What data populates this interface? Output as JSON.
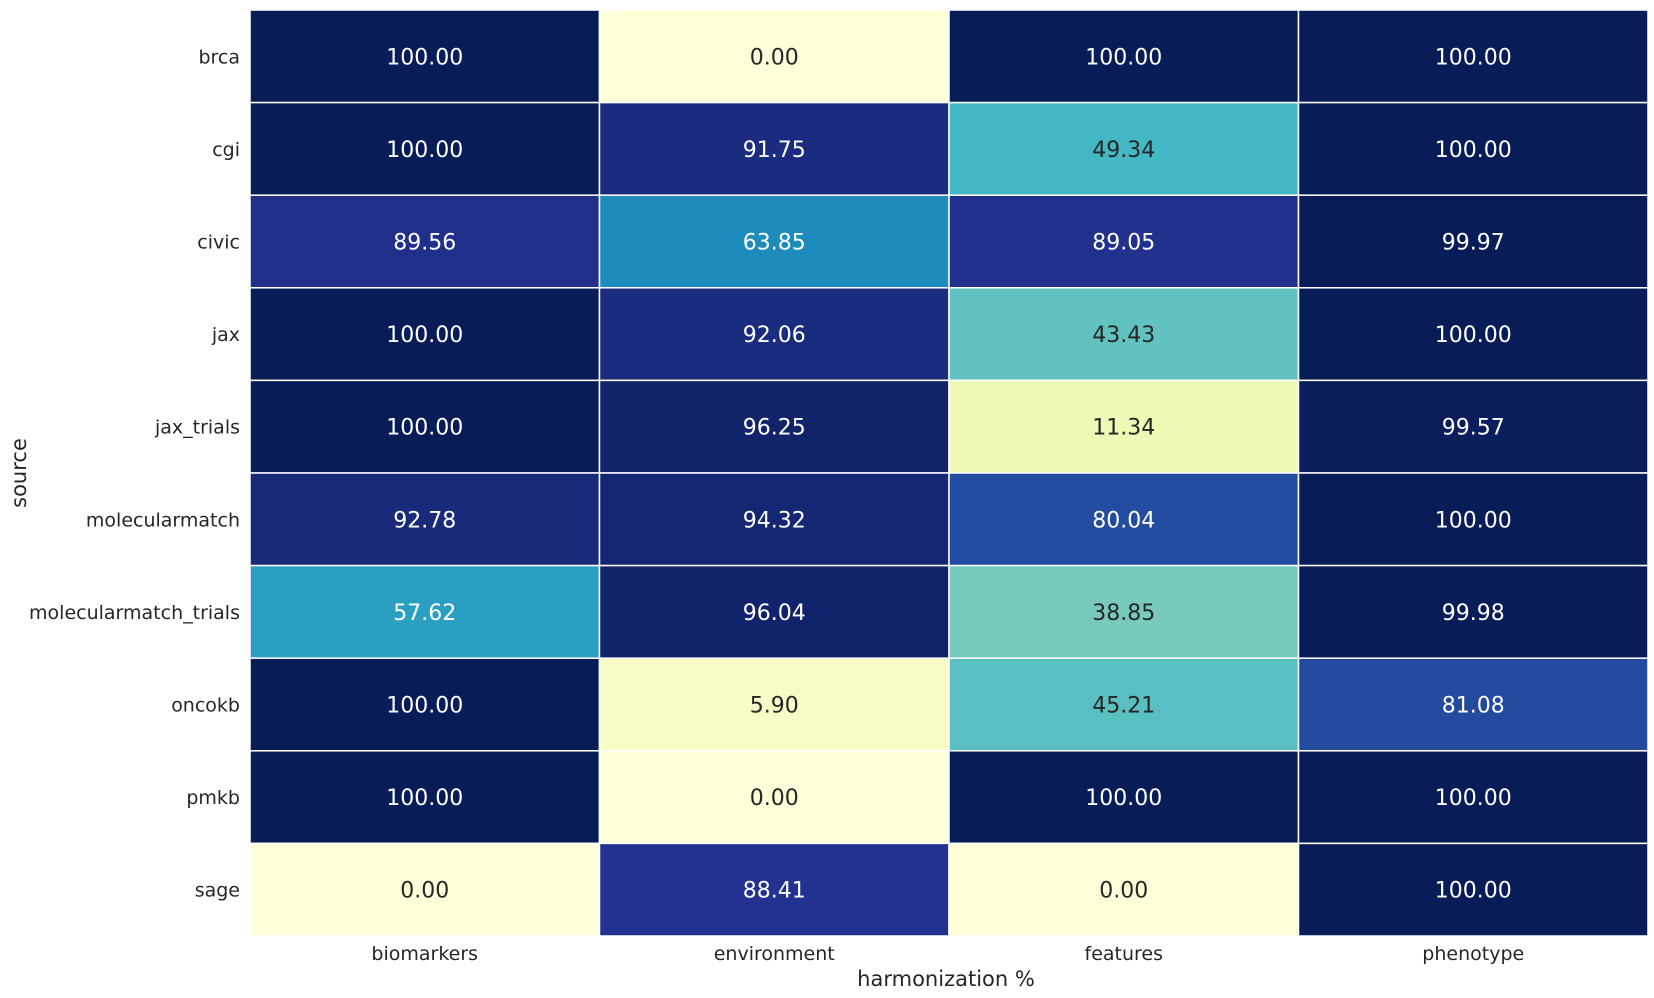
{
  "chart_data": {
    "type": "heatmap",
    "title": "",
    "xlabel": "harmonization %",
    "ylabel": "source",
    "x_categories": [
      "biomarkers",
      "environment",
      "features",
      "phenotype"
    ],
    "y_categories": [
      "brca",
      "cgi",
      "civic",
      "jax",
      "jax_trials",
      "molecularmatch",
      "molecularmatch_trials",
      "oncokb",
      "pmkb",
      "sage"
    ],
    "values": [
      [
        100.0,
        0.0,
        100.0,
        100.0
      ],
      [
        100.0,
        91.75,
        49.34,
        100.0
      ],
      [
        89.56,
        63.85,
        89.05,
        99.97
      ],
      [
        100.0,
        92.06,
        43.43,
        100.0
      ],
      [
        100.0,
        96.25,
        11.34,
        99.57
      ],
      [
        92.78,
        94.32,
        80.04,
        100.0
      ],
      [
        57.62,
        96.04,
        38.85,
        99.98
      ],
      [
        100.0,
        5.9,
        45.21,
        81.08
      ],
      [
        100.0,
        0.0,
        100.0,
        100.0
      ],
      [
        0.0,
        88.41,
        0.0,
        100.0
      ]
    ],
    "value_format": "2 decimals",
    "colormap": "YlGnBu",
    "vmin": 0,
    "vmax": 100,
    "colorbar": false,
    "grid_lines_color": "#ffffff"
  }
}
